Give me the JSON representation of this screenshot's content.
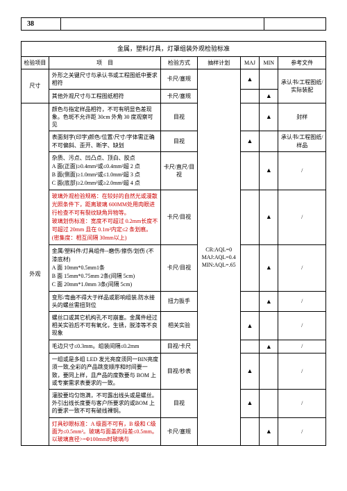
{
  "pageNumber": "38",
  "tableTitle": "金属，塑料灯具，灯罩组装外观检验标准",
  "headers": {
    "item": "检验项目",
    "project": "项　目",
    "method": "检验方式",
    "plan": "抽样计划",
    "maj": "MAJ",
    "min": "MIN",
    "ref": "参考文件"
  },
  "samplePlan": "CR:AQL=0\nMAJ:AQL=0.4\nMIN:AQL=.65",
  "dimensionLabel": "尺寸",
  "appearanceLabel": "外观",
  "triangle": "▲",
  "slash": "/",
  "rows": {
    "r1": {
      "proj": "外形之关键尺寸与承认书或工程图纸中要求相符",
      "method": "卡尺/塞规",
      "ref": "承认书/工程图纸/实际装配"
    },
    "r2": {
      "proj": "其他外观尺寸与工程图纸相符",
      "method": "卡尺/塞规"
    },
    "r3": {
      "proj": "颜色与指定样品相符，不可有明显色差现象。色斑不允许距 30cm 外角 30 度观察可见",
      "method": "目视",
      "ref": "封样"
    },
    "r4": {
      "proj": "表面刻字(印字)颜色/位置/尺寸/字体需正确不可偏斜、歪开、断字、缺划",
      "method": "目视",
      "ref": "承认书/工程图纸/样品"
    },
    "r5": {
      "proj": "杂质、污点、凹凸点、顶白、胶点\nA 面(正面)≥0.4mm²或≤0.4mm²超 2 点\nB 面(侧面)≥1.0mm²或≤1.0mm²超 3 点\nC 面(底部)≥2.0mm²或≥2.0mm²超 4 点",
      "method": "卡尺/直尺/目视"
    },
    "r6": {
      "projRed1": "玻璃外观检验规格：在较好的自然光或漫散光照条件下，距离玻璃 600MM处用肉眼进行检查不可有裂纹缺角异物等。",
      "projRed2": "玻璃划伤标准：宽度不可超过 0.2mm长度不可超过 20mm 且在 0.1m²内定≤2 条划痕。(密集度：相互间隔 30mm以上)",
      "method": "卡尺/目视"
    },
    "r7": {
      "proj": "金属/塑料件/灯具组件--磨伤/擦伤/划伤 (不漆底材)\nA 面 10mm*0.5mm1条\nB 面 15mm*0.75mm 2条(间隔 5cm)\nC 面 20mm*1.0mm 3条(间隔 5cm)",
      "method": "卡尺/目视"
    },
    "r8": {
      "proj": "变形/弯曲不得大于样品或影响组装.防水接头的螺丝需扭到位",
      "method": "扭力扳手"
    },
    "r9": {
      "proj": "螺丝口或其它机构孔不可崩塞。金属件经过相关实验后不可有氧化，生锈，脱漆等不良现象",
      "method": "相关实验"
    },
    "r10": {
      "proj": "毛边只寸≤0.3mm。组装间隔≤0.2mm",
      "method": "目视/卡尺"
    },
    "r11": {
      "proj": "一组或是多组 LED 发光亮度须同一BIN亮度须一致,全彩的产品跳变顺序和时间要一致，要同上样，且产品的度数要与 BOM 上或专案需求表要求的一致。",
      "method": "目视/秒表"
    },
    "r12": {
      "proj": "灌胶要均匀饱满，不可露出线头或是螺丝。外引出线长度要与客户所要求的或BOM 上的要求一致不可有破线裸铜。",
      "method": "目视"
    },
    "r13": {
      "projRed": "灯具砂眼标准：A 级面不可有，B 级和 C级面为≤0.5mm²。玻璃与面盖的段差≤0.5mm。以玻璃直径>=Φ100mm时玻璃与",
      "method": "卡尺/塞规"
    }
  }
}
